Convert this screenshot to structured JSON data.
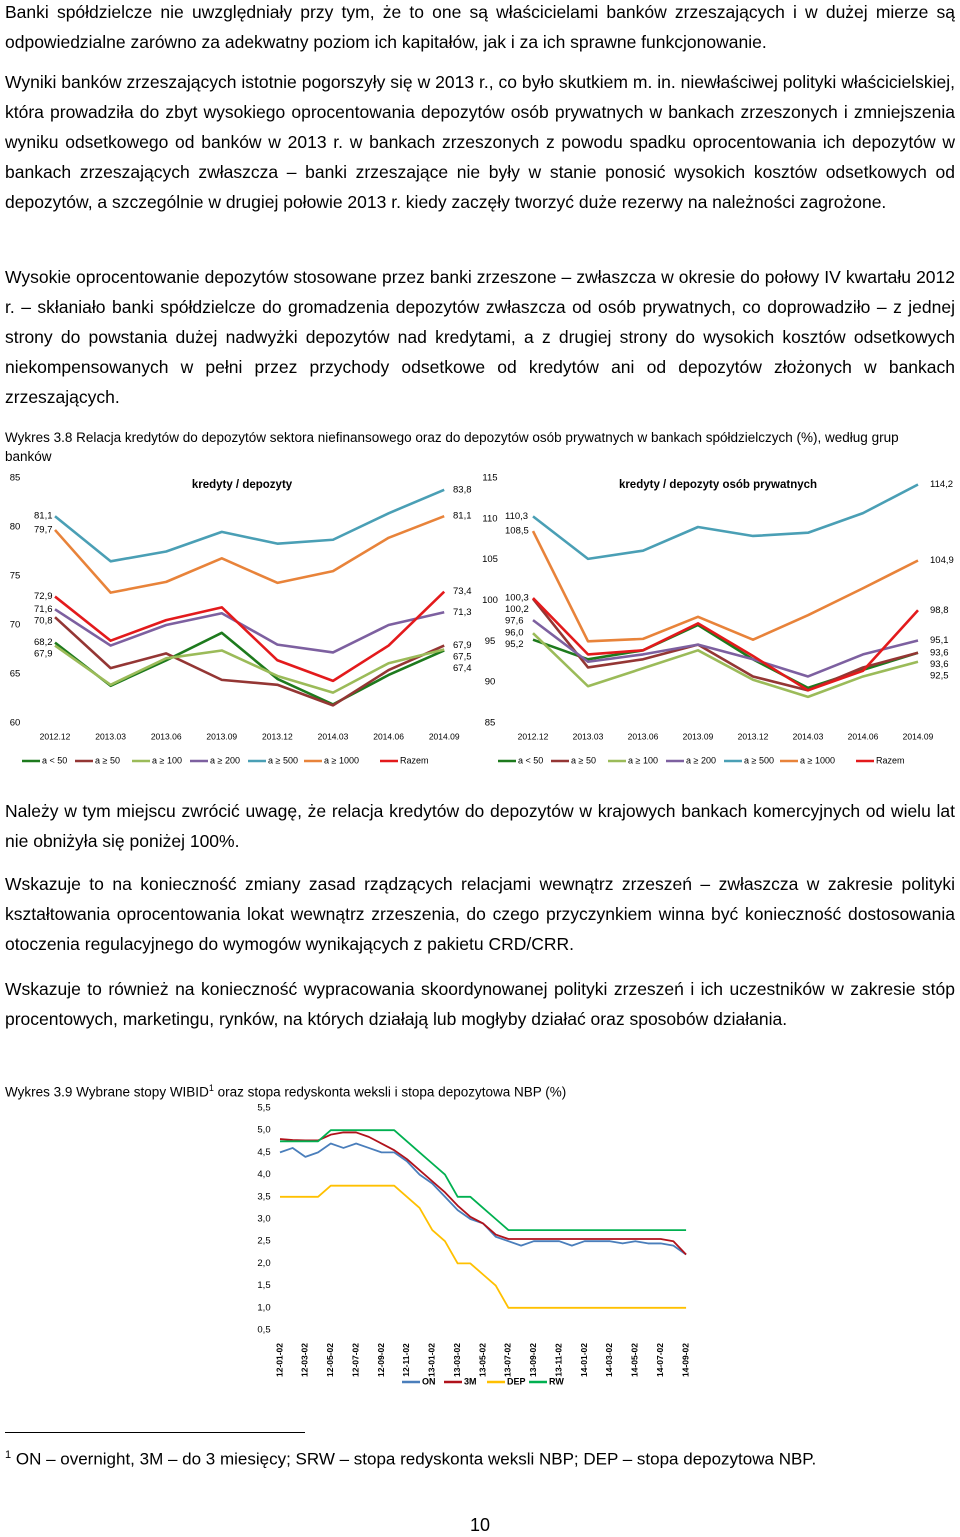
{
  "paragraphs": [
    "Banki spółdzielcze nie uwzględniały przy tym, że to one są właścicielami banków zrzeszających i w dużej mierze są odpowiedzialne zarówno za adekwatny poziom ich kapitałów, jak i za ich sprawne funkcjonowanie.",
    "Wyniki banków zrzeszających istotnie pogorszyły się w 2013 r., co było skutkiem m. in. niewłaściwej polityki właścicielskiej, która prowadziła do zbyt wysokiego oprocentowania depozytów osób prywatnych w bankach zrzeszonych i zmniejszenia wyniku odsetkowego od banków w 2013 r. w bankach zrzeszonych z powodu spadku oprocentowania ich depozytów w bankach zrzeszających zwłaszcza – banki zrzeszające nie były w stanie ponosić wysokich kosztów odsetkowych od depozytów, a szczególnie w drugiej połowie 2013 r. kiedy zaczęły tworzyć duże rezerwy na należności zagrożone.",
    "Wysokie oprocentowanie depozytów stosowane przez banki zrzeszone – zwłaszcza w okresie do połowy IV kwartału 2012 r. – skłaniało banki spółdzielcze do gromadzenia depozytów zwłaszcza od osób prywatnych, co doprowadziło – z jednej strony do powstania dużej nadwyżki depozytów nad kredytami, a z drugiej strony do wysokich kosztów odsetkowych niekompensowanych w pełni przez przychody odsetkowe od kredytów ani od depozytów złożonych w bankach zrzeszających.",
    "Należy w tym miejscu zwrócić uwagę, że relacja kredytów do depozytów w krajowych bankach komercyjnych od wielu lat nie obniżyła się poniżej 100%.",
    "Wskazuje to na konieczność zmiany zasad rządzących relacjami wewnątrz zrzeszeń – zwłaszcza w zakresie polityki kształtowania oprocentowania lokat wewnątrz zrzeszenia, do czego przyczynkiem winna być konieczność dostosowania otoczenia regulacyjnego do wymogów wynikających z pakietu CRD/CRR.",
    "Wskazuje to również na konieczność wypracowania skoordynowanej polityki zrzeszeń i ich uczestników w zakresie stóp procentowych, marketingu, rynków, na których działają lub mogłyby działać oraz sposobów działania."
  ],
  "captions": [
    {
      "text": "Wykres 3.8 Relacja kredytów do depozytów sektora niefinansowego oraz do depozytów osób prywatnych w bankach spółdzielczych (%), według grup banków"
    },
    {
      "text_before": "Wykres 3.9 Wybrane stopy WIBID",
      "footnote_mark": "1",
      "text_after": " oraz stopa redyskonta weksli i stopa depozytowa NBP (%)"
    }
  ],
  "footnote": {
    "mark": "1",
    "text": " ON – overnight, 3M – do 3 miesięcy; SRW – stopa redyskonta weksli NBP; DEP – stopa depozytowa NBP."
  },
  "page_number": "10",
  "chart_data": [
    {
      "type": "line",
      "title": "kredyty / depozyty",
      "categories": [
        "2012.12",
        "2013.03",
        "2013.06",
        "2013.09",
        "2013.12",
        "2014.03",
        "2014.06",
        "2014.09"
      ],
      "ylim": [
        60,
        85
      ],
      "yticks": [
        60,
        65,
        70,
        75,
        80,
        85
      ],
      "series": [
        {
          "name": "a < 50",
          "color": "#1d7a1d",
          "values": [
            68.2,
            63.8,
            66.4,
            69.2,
            64.5,
            61.9,
            64.9,
            67.4
          ],
          "value_labels": [
            "68,2",
            null,
            null,
            null,
            null,
            null,
            null,
            "67,4"
          ]
        },
        {
          "name": "a ≥ 50",
          "color": "#943634",
          "values": [
            70.8,
            65.6,
            67.1,
            64.4,
            63.9,
            61.8,
            65.4,
            67.9
          ],
          "value_labels": [
            "70,8",
            null,
            null,
            null,
            null,
            null,
            null,
            "67,9"
          ]
        },
        {
          "name": "a ≥ 100",
          "color": "#9bbb59",
          "values": [
            67.9,
            63.9,
            66.6,
            67.4,
            64.8,
            63.1,
            66.1,
            67.5
          ],
          "value_labels": [
            "67,9",
            null,
            null,
            null,
            null,
            null,
            null,
            "67,5"
          ]
        },
        {
          "name": "a ≥ 200",
          "color": "#7d60a0",
          "values": [
            71.6,
            67.9,
            70.0,
            71.2,
            68.0,
            67.2,
            70.0,
            71.3
          ],
          "value_labels": [
            "71,6",
            null,
            null,
            null,
            null,
            null,
            null,
            "71,3"
          ]
        },
        {
          "name": "a ≥ 500",
          "color": "#4a9fb5",
          "values": [
            81.1,
            76.5,
            77.5,
            79.5,
            78.3,
            78.7,
            81.4,
            83.8
          ],
          "value_labels": [
            "81,1",
            null,
            null,
            null,
            null,
            null,
            null,
            "83,8"
          ]
        },
        {
          "name": "a ≥ 1000",
          "color": "#e8833a",
          "values": [
            79.7,
            73.3,
            74.4,
            76.8,
            74.3,
            75.5,
            78.9,
            81.1
          ],
          "value_labels": [
            "79,7",
            null,
            null,
            null,
            null,
            null,
            null,
            "81,1"
          ]
        },
        {
          "name": "Razem",
          "color": "#e31a1c",
          "values": [
            72.9,
            68.4,
            70.5,
            71.8,
            66.4,
            64.3,
            67.9,
            73.4
          ],
          "value_labels": [
            "72,9",
            null,
            null,
            null,
            null,
            null,
            null,
            "73,4"
          ]
        }
      ]
    },
    {
      "type": "line",
      "title": "kredyty / depozyty osób prywatnych",
      "categories": [
        "2012.12",
        "2013.03",
        "2013.06",
        "2013.09",
        "2013.12",
        "2014.03",
        "2014.06",
        "2014.09"
      ],
      "ylim": [
        85,
        115
      ],
      "yticks": [
        85,
        90,
        95,
        100,
        105,
        110,
        115
      ],
      "series": [
        {
          "name": "a < 50",
          "color": "#1d7a1d",
          "values": [
            95.2,
            92.8,
            93.9,
            97.0,
            92.8,
            89.3,
            91.5,
            93.6
          ],
          "value_labels": [
            "95,2",
            null,
            null,
            null,
            null,
            null,
            null,
            "93,6"
          ]
        },
        {
          "name": "a ≥ 50",
          "color": "#943634",
          "values": [
            100.2,
            91.8,
            92.8,
            94.6,
            90.7,
            89.0,
            91.8,
            93.6
          ],
          "value_labels": [
            "100,2",
            null,
            null,
            null,
            null,
            null,
            null,
            "93,6"
          ]
        },
        {
          "name": "a ≥ 100",
          "color": "#9bbb59",
          "values": [
            96.0,
            89.5,
            91.7,
            93.9,
            90.3,
            88.2,
            90.7,
            92.5
          ],
          "value_labels": [
            "96,0",
            null,
            null,
            null,
            null,
            null,
            null,
            "92,5"
          ]
        },
        {
          "name": "a ≥ 200",
          "color": "#7d60a0",
          "values": [
            97.6,
            92.5,
            93.4,
            94.6,
            92.8,
            90.7,
            93.4,
            95.1
          ],
          "value_labels": [
            "97,6",
            null,
            null,
            null,
            null,
            null,
            null,
            "95,1"
          ]
        },
        {
          "name": "a ≥ 500",
          "color": "#4a9fb5",
          "values": [
            110.3,
            105.1,
            106.1,
            109.0,
            107.9,
            108.3,
            110.7,
            114.2
          ],
          "value_labels": [
            "110,3",
            null,
            null,
            null,
            null,
            null,
            null,
            "114,2"
          ]
        },
        {
          "name": "a ≥ 1000",
          "color": "#e8833a",
          "values": [
            108.5,
            95.0,
            95.3,
            98.0,
            95.2,
            98.2,
            101.5,
            104.9
          ],
          "value_labels": [
            "108,5",
            null,
            null,
            null,
            null,
            null,
            null,
            "104,9"
          ]
        },
        {
          "name": "Razem",
          "color": "#e31a1c",
          "values": [
            100.3,
            93.4,
            93.9,
            97.2,
            93.2,
            89.0,
            91.4,
            98.8
          ],
          "value_labels": [
            "100,3",
            null,
            null,
            null,
            null,
            null,
            null,
            "98,8"
          ]
        }
      ]
    },
    {
      "type": "line",
      "categories": [
        "12-01-02",
        null,
        "12-03-02",
        null,
        "12-05-02",
        null,
        "12-07-02",
        null,
        "12-09-02",
        null,
        "12-11-02",
        null,
        "13-01-02",
        null,
        "13-03-02",
        null,
        "13-05-02",
        null,
        "13-07-02",
        null,
        "13-09-02",
        null,
        "13-11-02",
        null,
        "14-01-02",
        null,
        "14-03-02",
        null,
        "14-05-02",
        null,
        "14-07-02",
        null,
        "14-09-02"
      ],
      "ylim": [
        0.5,
        5.5
      ],
      "yticks": [
        {
          "value": 0.5,
          "label": "0,5"
        },
        {
          "value": 1,
          "label": "1,0"
        },
        {
          "value": 1.5,
          "label": "1,5"
        },
        {
          "value": 2,
          "label": "2,0"
        },
        {
          "value": 2.5,
          "label": "2,5"
        },
        {
          "value": 3,
          "label": "3,0"
        },
        {
          "value": 3.5,
          "label": "3,5"
        },
        {
          "value": 4,
          "label": "4,0"
        },
        {
          "value": 4.5,
          "label": "4,5"
        },
        {
          "value": 5,
          "label": "5,0"
        },
        {
          "value": 5.5,
          "label": "5,5"
        }
      ],
      "series": [
        {
          "name": "ON",
          "color": "#4a7ebb",
          "values": [
            4.5,
            4.6,
            4.4,
            4.5,
            4.7,
            4.6,
            4.7,
            4.6,
            4.5,
            4.5,
            4.3,
            4.0,
            3.8,
            3.5,
            3.2,
            3.0,
            2.9,
            2.6,
            2.5,
            2.4,
            2.5,
            2.5,
            2.5,
            2.4,
            2.5,
            2.5,
            2.5,
            2.45,
            2.5,
            2.45,
            2.45,
            2.4,
            2.2
          ]
        },
        {
          "name": "3M",
          "color": "#b0121b",
          "values": [
            4.8,
            4.78,
            4.77,
            4.77,
            4.9,
            4.95,
            4.95,
            4.85,
            4.7,
            4.55,
            4.35,
            4.1,
            3.85,
            3.6,
            3.3,
            3.05,
            2.9,
            2.65,
            2.55,
            2.55,
            2.55,
            2.55,
            2.55,
            2.55,
            2.55,
            2.55,
            2.55,
            2.55,
            2.55,
            2.55,
            2.55,
            2.5,
            2.2
          ]
        },
        {
          "name": "DEP",
          "color": "#ffc000",
          "values": [
            3.5,
            3.5,
            3.5,
            3.5,
            3.75,
            3.75,
            3.75,
            3.75,
            3.75,
            3.75,
            3.5,
            3.25,
            2.75,
            2.5,
            2.0,
            2.0,
            1.75,
            1.5,
            1.0,
            1.0,
            1.0,
            1.0,
            1.0,
            1.0,
            1.0,
            1.0,
            1.0,
            1.0,
            1.0,
            1.0,
            1.0,
            1.0,
            1.0
          ]
        },
        {
          "name": "RW",
          "color": "#00b050",
          "values": [
            4.75,
            4.75,
            4.75,
            4.75,
            5.0,
            5.0,
            5.0,
            5.0,
            5.0,
            5.0,
            4.75,
            4.5,
            4.25,
            4.0,
            3.5,
            3.5,
            3.25,
            3.0,
            2.75,
            2.75,
            2.75,
            2.75,
            2.75,
            2.75,
            2.75,
            2.75,
            2.75,
            2.75,
            2.75,
            2.75,
            2.75,
            2.75,
            2.75
          ]
        }
      ]
    }
  ]
}
